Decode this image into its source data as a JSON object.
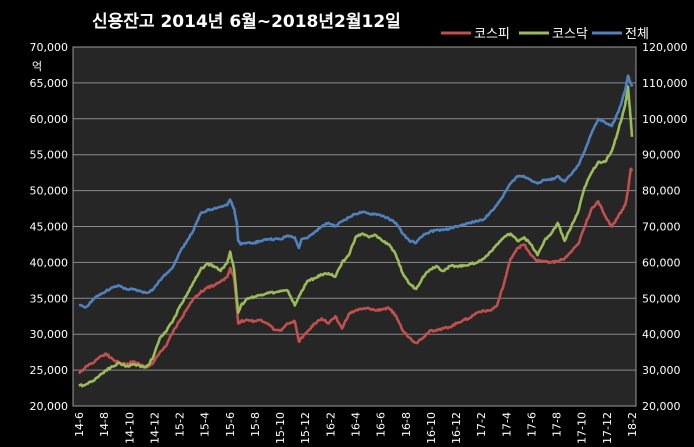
{
  "colors": {
    "background": "#000000",
    "plot_area": "#262626",
    "grid": "#8a8a8a",
    "text": "#ffffff"
  },
  "chart_data": {
    "type": "line",
    "title": "신용잔고 2014년 6월~2018년2월12일",
    "ylabel_left": "억",
    "ylabel_right": "",
    "xlabel": "",
    "grid": true,
    "legend_position": "top-right",
    "y_left": {
      "min": 20000,
      "max": 70000,
      "ticks": [
        "20,000",
        "25,000",
        "30,000",
        "35,000",
        "40,000",
        "45,000",
        "50,000",
        "55,000",
        "60,000",
        "65,000",
        "70,000"
      ]
    },
    "y_right": {
      "min": 20000,
      "max": 120000,
      "ticks": [
        "20,000",
        "30,000",
        "40,000",
        "50,000",
        "60,000",
        "70,000",
        "80,000",
        "90,000",
        "100,000",
        "110,000",
        "120,000"
      ]
    },
    "x_tick_labels": [
      "14-6",
      "14-8",
      "14-10",
      "14-12",
      "15-2",
      "15-4",
      "15-6",
      "15-8",
      "15-10",
      "15-12",
      "16-2",
      "16-4",
      "16-6",
      "16-8",
      "16-10",
      "16-12",
      "17-2",
      "17-4",
      "17-6",
      "17-8",
      "17-10",
      "17-12",
      "18-2"
    ],
    "series": [
      {
        "name": "코스피",
        "color": "#c0504d",
        "axis": "left",
        "points": [
          [
            0,
            24500
          ],
          [
            0.5,
            25500
          ],
          [
            1,
            26000
          ],
          [
            1.5,
            26800
          ],
          [
            2,
            27300
          ],
          [
            2.5,
            26500
          ],
          [
            3,
            26000
          ],
          [
            3.5,
            25800
          ],
          [
            4,
            26200
          ],
          [
            4.5,
            25800
          ],
          [
            5,
            25500
          ],
          [
            5.5,
            26000
          ],
          [
            6,
            27500
          ],
          [
            6.5,
            28500
          ],
          [
            7,
            30500
          ],
          [
            7.5,
            32000
          ],
          [
            8,
            33500
          ],
          [
            8.5,
            35000
          ],
          [
            9,
            35800
          ],
          [
            9.5,
            36500
          ],
          [
            10,
            36800
          ],
          [
            10.5,
            37300
          ],
          [
            11,
            38000
          ],
          [
            11.2,
            39200
          ],
          [
            11.5,
            37800
          ],
          [
            11.7,
            34000
          ],
          [
            11.8,
            31500
          ],
          [
            12,
            31800
          ],
          [
            12.5,
            32000
          ],
          [
            13,
            31800
          ],
          [
            13.5,
            32000
          ],
          [
            14,
            31500
          ],
          [
            14.5,
            30600
          ],
          [
            15,
            30500
          ],
          [
            15.5,
            31500
          ],
          [
            16,
            31800
          ],
          [
            16.3,
            29000
          ],
          [
            16.5,
            29500
          ],
          [
            17,
            30500
          ],
          [
            17.5,
            31500
          ],
          [
            18,
            32200
          ],
          [
            18.5,
            31500
          ],
          [
            19,
            32500
          ],
          [
            19.5,
            30800
          ],
          [
            20,
            32800
          ],
          [
            20.5,
            33300
          ],
          [
            21,
            33500
          ],
          [
            21.5,
            33600
          ],
          [
            22,
            33300
          ],
          [
            22.5,
            33500
          ],
          [
            23,
            33600
          ],
          [
            23.5,
            32600
          ],
          [
            24,
            30500
          ],
          [
            24.5,
            29500
          ],
          [
            25,
            28800
          ],
          [
            25.5,
            29500
          ],
          [
            26,
            30500
          ],
          [
            26.5,
            30600
          ],
          [
            27,
            30800
          ],
          [
            27.5,
            31000
          ],
          [
            28,
            31500
          ],
          [
            28.5,
            32000
          ],
          [
            29,
            32300
          ],
          [
            29.5,
            33000
          ],
          [
            30,
            33300
          ],
          [
            30.5,
            33300
          ],
          [
            31,
            34000
          ],
          [
            31.5,
            37000
          ],
          [
            32,
            40500
          ],
          [
            32.5,
            42000
          ],
          [
            33,
            42500
          ],
          [
            33.5,
            41000
          ],
          [
            34,
            40200
          ],
          [
            34.5,
            40200
          ],
          [
            35,
            40000
          ],
          [
            35.5,
            40200
          ],
          [
            36,
            40500
          ],
          [
            36.5,
            41500
          ],
          [
            37,
            42500
          ],
          [
            37.5,
            45000
          ],
          [
            38,
            47500
          ],
          [
            38.5,
            48500
          ],
          [
            39,
            46500
          ],
          [
            39.5,
            45000
          ],
          [
            40,
            46500
          ],
          [
            40.5,
            48000
          ],
          [
            40.7,
            50000
          ],
          [
            40.9,
            53000
          ],
          [
            41,
            52800
          ]
        ]
      },
      {
        "name": "코스닥",
        "color": "#9bbb59",
        "axis": "left",
        "points": [
          [
            0,
            22800
          ],
          [
            0.5,
            23000
          ],
          [
            1,
            23500
          ],
          [
            1.5,
            24200
          ],
          [
            2,
            25000
          ],
          [
            2.5,
            25500
          ],
          [
            3,
            26000
          ],
          [
            3.5,
            25500
          ],
          [
            4,
            25800
          ],
          [
            4.5,
            25600
          ],
          [
            5,
            25400
          ],
          [
            5.5,
            26800
          ],
          [
            6,
            29500
          ],
          [
            6.5,
            30500
          ],
          [
            7,
            32000
          ],
          [
            7.5,
            34000
          ],
          [
            8,
            35500
          ],
          [
            8.5,
            37300
          ],
          [
            9,
            39000
          ],
          [
            9.5,
            39800
          ],
          [
            10,
            39500
          ],
          [
            10.5,
            38800
          ],
          [
            11,
            40000
          ],
          [
            11.2,
            41500
          ],
          [
            11.5,
            39000
          ],
          [
            11.7,
            35000
          ],
          [
            11.8,
            33000
          ],
          [
            12,
            34000
          ],
          [
            12.5,
            35000
          ],
          [
            13,
            35200
          ],
          [
            13.5,
            35500
          ],
          [
            14,
            35800
          ],
          [
            14.5,
            35800
          ],
          [
            15,
            36000
          ],
          [
            15.5,
            36000
          ],
          [
            16,
            34000
          ],
          [
            16.5,
            36000
          ],
          [
            17,
            37500
          ],
          [
            17.5,
            37800
          ],
          [
            18,
            38300
          ],
          [
            18.5,
            38500
          ],
          [
            19,
            38000
          ],
          [
            19.5,
            40000
          ],
          [
            20,
            41000
          ],
          [
            20.5,
            43500
          ],
          [
            21,
            44000
          ],
          [
            21.5,
            43500
          ],
          [
            22,
            43800
          ],
          [
            22.5,
            43000
          ],
          [
            23,
            42500
          ],
          [
            23.5,
            41000
          ],
          [
            24,
            38500
          ],
          [
            24.5,
            37000
          ],
          [
            25,
            36300
          ],
          [
            25.5,
            38000
          ],
          [
            26,
            39000
          ],
          [
            26.5,
            39500
          ],
          [
            27,
            38800
          ],
          [
            27.5,
            39500
          ],
          [
            28,
            39500
          ],
          [
            28.5,
            39500
          ],
          [
            29,
            39800
          ],
          [
            29.5,
            40000
          ],
          [
            30,
            40500
          ],
          [
            30.5,
            41500
          ],
          [
            31,
            42500
          ],
          [
            31.5,
            43500
          ],
          [
            32,
            44000
          ],
          [
            32.5,
            43000
          ],
          [
            33,
            43500
          ],
          [
            33.5,
            42500
          ],
          [
            34,
            41000
          ],
          [
            34.5,
            43000
          ],
          [
            35,
            44000
          ],
          [
            35.5,
            45500
          ],
          [
            36,
            43000
          ],
          [
            36.5,
            45000
          ],
          [
            37,
            47000
          ],
          [
            37.5,
            50500
          ],
          [
            38,
            52500
          ],
          [
            38.5,
            54000
          ],
          [
            39,
            54000
          ],
          [
            39.5,
            55500
          ],
          [
            40,
            58500
          ],
          [
            40.5,
            62000
          ],
          [
            40.7,
            64500
          ],
          [
            40.9,
            60000
          ],
          [
            41,
            57500
          ]
        ]
      },
      {
        "name": "전체",
        "color": "#4f81bd",
        "axis": "right",
        "points": [
          [
            0,
            48000
          ],
          [
            0.5,
            47500
          ],
          [
            1,
            49500
          ],
          [
            1.5,
            51000
          ],
          [
            2,
            52000
          ],
          [
            2.5,
            53000
          ],
          [
            3,
            53500
          ],
          [
            3.5,
            52500
          ],
          [
            4,
            52500
          ],
          [
            4.5,
            52000
          ],
          [
            5,
            51500
          ],
          [
            5.5,
            52500
          ],
          [
            6,
            55000
          ],
          [
            6.5,
            57000
          ],
          [
            7,
            59000
          ],
          [
            7.5,
            63000
          ],
          [
            8,
            66000
          ],
          [
            8.5,
            69000
          ],
          [
            9,
            73500
          ],
          [
            9.5,
            74500
          ],
          [
            10,
            75000
          ],
          [
            10.5,
            75500
          ],
          [
            11,
            76000
          ],
          [
            11.2,
            77500
          ],
          [
            11.5,
            75000
          ],
          [
            11.7,
            71000
          ],
          [
            11.8,
            66000
          ],
          [
            12,
            65000
          ],
          [
            12.5,
            65500
          ],
          [
            13,
            65500
          ],
          [
            13.5,
            66000
          ],
          [
            14,
            66500
          ],
          [
            14.5,
            66500
          ],
          [
            15,
            66500
          ],
          [
            15.5,
            67500
          ],
          [
            16,
            67000
          ],
          [
            16.3,
            64000
          ],
          [
            16.5,
            66500
          ],
          [
            17,
            67000
          ],
          [
            17.5,
            68500
          ],
          [
            18,
            70000
          ],
          [
            18.5,
            71000
          ],
          [
            19,
            70000
          ],
          [
            19.5,
            71500
          ],
          [
            20,
            72500
          ],
          [
            20.5,
            73500
          ],
          [
            21,
            74000
          ],
          [
            21.5,
            73500
          ],
          [
            22,
            73500
          ],
          [
            22.5,
            73000
          ],
          [
            23,
            72000
          ],
          [
            23.5,
            71000
          ],
          [
            24,
            68000
          ],
          [
            24.5,
            66000
          ],
          [
            25,
            65500
          ],
          [
            25.5,
            67500
          ],
          [
            26,
            68500
          ],
          [
            26.5,
            69000
          ],
          [
            27,
            69000
          ],
          [
            27.5,
            69500
          ],
          [
            28,
            70000
          ],
          [
            28.5,
            70500
          ],
          [
            29,
            71000
          ],
          [
            29.5,
            71500
          ],
          [
            30,
            72000
          ],
          [
            30.5,
            74000
          ],
          [
            31,
            76000
          ],
          [
            31.5,
            79000
          ],
          [
            32,
            82000
          ],
          [
            32.5,
            84000
          ],
          [
            33,
            84000
          ],
          [
            33.5,
            83000
          ],
          [
            34,
            82000
          ],
          [
            34.5,
            83000
          ],
          [
            35,
            83000
          ],
          [
            35.5,
            84000
          ],
          [
            36,
            82500
          ],
          [
            36.5,
            84500
          ],
          [
            37,
            87000
          ],
          [
            37.5,
            91000
          ],
          [
            38,
            96000
          ],
          [
            38.5,
            100000
          ],
          [
            39,
            99000
          ],
          [
            39.5,
            98000
          ],
          [
            40,
            102000
          ],
          [
            40.5,
            108000
          ],
          [
            40.7,
            112000
          ],
          [
            40.9,
            110000
          ],
          [
            41,
            109000
          ]
        ]
      }
    ]
  }
}
